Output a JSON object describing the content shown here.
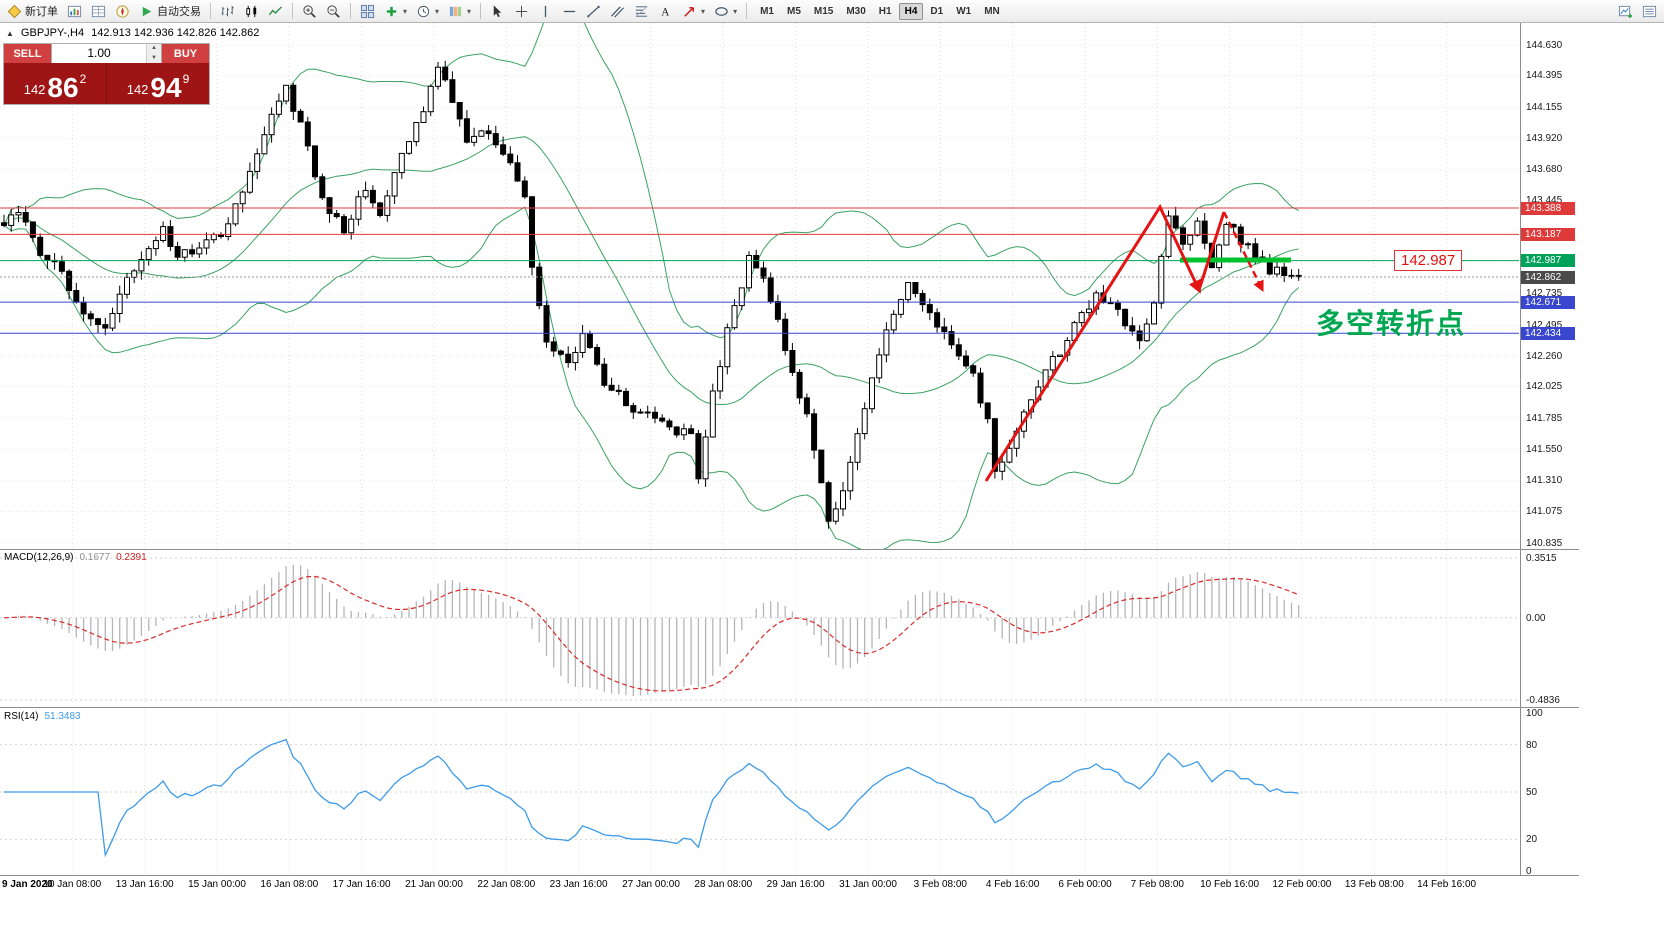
{
  "toolbar": {
    "new_order_label": "新订单",
    "auto_trading_label": "自动交易",
    "timeframes": [
      "M1",
      "M5",
      "M15",
      "M30",
      "H1",
      "H4",
      "D1",
      "W1",
      "MN"
    ],
    "active_timeframe": "H4",
    "icons": [
      "new-order",
      "market-watch",
      "data-window",
      "navigator",
      "auto-trading",
      "bar-chart",
      "candlestick-chart",
      "line-chart",
      "zoom-in",
      "zoom-out",
      "tile-windows",
      "add-indicator",
      "periods",
      "templates",
      "cursor",
      "crosshair",
      "vertical-line",
      "horizontal-line",
      "trendline",
      "equidistant-channel",
      "fibonacci",
      "text",
      "arrows",
      "shapes",
      "new-chart",
      "chart-list"
    ]
  },
  "trade_panel": {
    "sell_label": "SELL",
    "buy_label": "BUY",
    "volume": "1.00",
    "sell_price_prefix": "142",
    "sell_price_main": "86",
    "sell_price_sup": "2",
    "buy_price_prefix": "142",
    "buy_price_main": "94",
    "buy_price_sup": "9"
  },
  "chart_header": {
    "symbol": "GBPJPY-,H4",
    "ohlc": "142.913 142.936 142.826 142.862"
  },
  "price_axis": {
    "ticks": [
      "144.630",
      "144.395",
      "144.155",
      "143.920",
      "143.680",
      "143.445",
      "142.735",
      "142.495",
      "142.260",
      "142.025",
      "141.785",
      "141.550",
      "141.310",
      "141.075",
      "140.835"
    ],
    "tags": [
      {
        "value": "143.388",
        "color": "#df3a3a"
      },
      {
        "value": "143.187",
        "color": "#df3a3a"
      },
      {
        "value": "142.987",
        "color": "#00a259"
      },
      {
        "value": "142.862",
        "color": "#4a4a4a"
      },
      {
        "value": "142.671",
        "color": "#3947cf"
      },
      {
        "value": "142.434",
        "color": "#3947cf"
      }
    ]
  },
  "annotations": {
    "turning_point_text": "多空转折点",
    "price_label": "142.987"
  },
  "macd_panel": {
    "label": "MACD(12,26,9)",
    "value_main": "0.1677",
    "value_signal": "0.2391",
    "scale_top": "0.3515",
    "scale_zero": "0.00",
    "scale_bottom": "-0.4836"
  },
  "rsi_panel": {
    "label": "RSI(14)",
    "value": "51.3483",
    "scale": [
      "100",
      "80",
      "50",
      "20",
      "0"
    ]
  },
  "time_axis": [
    "9 Jan 2020",
    "10 Jan 08:00",
    "13 Jan 16:00",
    "15 Jan 00:00",
    "16 Jan 08:00",
    "17 Jan 16:00",
    "21 Jan 00:00",
    "22 Jan 08:00",
    "23 Jan 16:00",
    "27 Jan 00:00",
    "28 Jan 08:00",
    "29 Jan 16:00",
    "31 Jan 00:00",
    "3 Feb 08:00",
    "4 Feb 16:00",
    "6 Feb 00:00",
    "7 Feb 08:00",
    "10 Feb 16:00",
    "12 Feb 00:00",
    "13 Feb 08:00",
    "14 Feb 16:00"
  ],
  "chart_data": {
    "type": "candlestick",
    "symbol": "GBPJPY",
    "timeframe": "H4",
    "current": {
      "open": 142.913,
      "high": 142.936,
      "low": 142.826,
      "close": 142.862,
      "bid": 142.862,
      "ask": 142.949
    },
    "y_range": [
      140.835,
      144.63
    ],
    "overlays": [
      "Bollinger Bands (20,2)"
    ],
    "indicators": [
      "MACD(12,26,9)",
      "RSI(14)"
    ],
    "hlines": [
      {
        "price": 143.388,
        "color": "#df3a3a",
        "style": "solid"
      },
      {
        "price": 143.187,
        "color": "#df3a3a",
        "style": "solid"
      },
      {
        "price": 142.987,
        "color": "#00a259",
        "style": "solid"
      },
      {
        "price": 142.671,
        "color": "#3947cf",
        "style": "solid"
      },
      {
        "price": 142.434,
        "color": "#3947cf",
        "style": "solid"
      },
      {
        "price": 142.862,
        "color": "#999999",
        "style": "dotted"
      }
    ],
    "candle_count": 180,
    "price_path": [
      [
        0,
        143.28
      ],
      [
        2,
        143.38
      ],
      [
        5,
        143.05
      ],
      [
        8,
        142.92
      ],
      [
        11,
        142.55
      ],
      [
        14,
        142.46
      ],
      [
        17,
        142.82
      ],
      [
        20,
        143.05
      ],
      [
        22,
        143.27
      ],
      [
        24,
        143.0
      ],
      [
        27,
        143.08
      ],
      [
        30,
        143.18
      ],
      [
        33,
        143.55
      ],
      [
        36,
        143.95
      ],
      [
        39,
        144.28
      ],
      [
        41,
        144.05
      ],
      [
        44,
        143.45
      ],
      [
        47,
        143.2
      ],
      [
        50,
        143.55
      ],
      [
        52,
        143.32
      ],
      [
        55,
        143.78
      ],
      [
        58,
        144.12
      ],
      [
        60,
        144.5
      ],
      [
        62,
        144.18
      ],
      [
        64,
        143.92
      ],
      [
        67,
        143.98
      ],
      [
        70,
        143.73
      ],
      [
        72,
        143.45
      ],
      [
        73,
        142.9
      ],
      [
        75,
        142.35
      ],
      [
        78,
        142.18
      ],
      [
        80,
        142.42
      ],
      [
        83,
        142.08
      ],
      [
        86,
        141.9
      ],
      [
        89,
        141.8
      ],
      [
        92,
        141.72
      ],
      [
        95,
        141.65
      ],
      [
        96,
        141.35
      ],
      [
        98,
        141.95
      ],
      [
        100,
        142.45
      ],
      [
        103,
        143.0
      ],
      [
        105,
        142.85
      ],
      [
        107,
        142.55
      ],
      [
        109,
        142.1
      ],
      [
        111,
        141.8
      ],
      [
        113,
        141.3
      ],
      [
        114,
        140.98
      ],
      [
        116,
        141.25
      ],
      [
        118,
        141.7
      ],
      [
        120,
        142.1
      ],
      [
        122,
        142.5
      ],
      [
        125,
        142.78
      ],
      [
        128,
        142.58
      ],
      [
        131,
        142.38
      ],
      [
        134,
        142.12
      ],
      [
        136,
        141.75
      ],
      [
        137,
        141.38
      ],
      [
        139,
        141.6
      ],
      [
        142,
        141.95
      ],
      [
        145,
        142.22
      ],
      [
        148,
        142.48
      ],
      [
        151,
        142.72
      ],
      [
        154,
        142.58
      ],
      [
        157,
        142.42
      ],
      [
        159,
        142.65
      ],
      [
        161,
        143.36
      ],
      [
        163,
        143.1
      ],
      [
        165,
        143.26
      ],
      [
        167,
        142.95
      ],
      [
        169,
        143.28
      ],
      [
        171,
        143.15
      ],
      [
        173,
        143.02
      ],
      [
        175,
        142.92
      ],
      [
        177,
        142.88
      ],
      [
        179,
        142.862
      ]
    ]
  }
}
